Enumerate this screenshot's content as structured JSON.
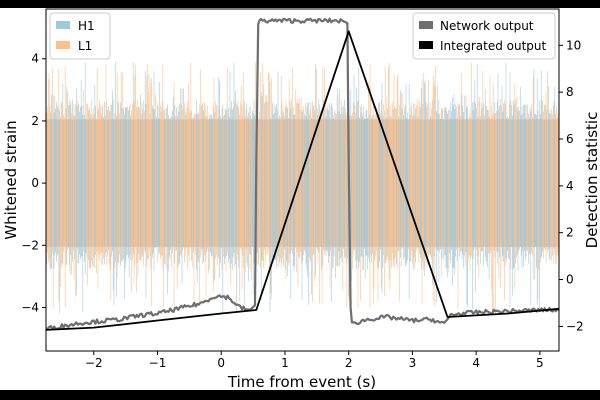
{
  "chart_data": {
    "type": "line",
    "xlabel": "Time from event (s)",
    "ylabel_left": "Whitened strain",
    "ylabel_right": "Detection statistic",
    "xlim": [
      -2.75,
      5.3
    ],
    "ylim_left": [
      -5.4,
      5.6
    ],
    "ylim_right": [
      -3.05,
      11.55
    ],
    "x_ticks": [
      -2,
      -1,
      0,
      1,
      2,
      3,
      4,
      5
    ],
    "x_tick_labels": [
      "−2",
      "−1",
      "0",
      "1",
      "2",
      "3",
      "4",
      "5"
    ],
    "y_left_ticks": [
      -4,
      -2,
      0,
      2,
      4
    ],
    "y_left_tick_labels": [
      "−4",
      "−2",
      "0",
      "2",
      "4"
    ],
    "y_right_ticks": [
      -2,
      0,
      2,
      4,
      6,
      8,
      10
    ],
    "y_right_tick_labels": [
      "−2",
      "0",
      "2",
      "4",
      "6",
      "8",
      "10"
    ],
    "legend_left": {
      "position": "upper-left",
      "entries": [
        {
          "label": "H1",
          "color": "#9ecae1"
        },
        {
          "label": "L1",
          "color": "#fdc08a"
        }
      ]
    },
    "legend_right": {
      "position": "upper-right",
      "entries": [
        {
          "label": "Network output",
          "color": "#6e6e6e"
        },
        {
          "label": "Integrated output",
          "color": "#000000"
        }
      ]
    },
    "strain_noise": {
      "description_axis": "left",
      "band_low": -2.05,
      "band_high": 2.05,
      "spike_low": -4.2,
      "spike_high": 3.9,
      "h1_color": "#9ecae1",
      "l1_color": "#fdc08a",
      "overlap_color": "#d6bfa8"
    },
    "series": [
      {
        "name": "Network output",
        "axis": "right",
        "color": "#6e6e6e",
        "x": [
          -2.75,
          -2.2,
          -1.6,
          -1.2,
          -1.0,
          -0.6,
          -0.3,
          -0.1,
          0.1,
          0.3,
          0.45,
          0.53,
          0.55,
          0.58,
          0.6,
          0.8,
          1.2,
          1.6,
          1.9,
          1.98,
          2.0,
          2.03,
          2.05,
          2.3,
          2.6,
          3.0,
          3.3,
          3.5,
          3.6,
          4.0,
          4.5,
          5.0,
          5.3
        ],
        "y": [
          -2.1,
          -1.85,
          -1.7,
          -1.5,
          -1.45,
          -1.2,
          -1.0,
          -0.7,
          -0.75,
          -1.2,
          -1.3,
          -1.1,
          5.0,
          10.9,
          11.05,
          11.05,
          11.05,
          11.05,
          11.05,
          10.95,
          5.0,
          -1.2,
          -1.9,
          -1.7,
          -1.6,
          -1.75,
          -1.7,
          -1.9,
          -1.5,
          -1.4,
          -1.35,
          -1.3,
          -1.3
        ]
      },
      {
        "name": "Integrated output",
        "axis": "right",
        "color": "#000000",
        "x": [
          -2.75,
          -2.0,
          -1.5,
          -1.0,
          0.0,
          0.55,
          2.0,
          3.55,
          4.5,
          5.3
        ],
        "y": [
          -2.15,
          -2.05,
          -1.9,
          -1.75,
          -1.45,
          -1.3,
          10.6,
          -1.6,
          -1.45,
          -1.25
        ]
      }
    ]
  }
}
